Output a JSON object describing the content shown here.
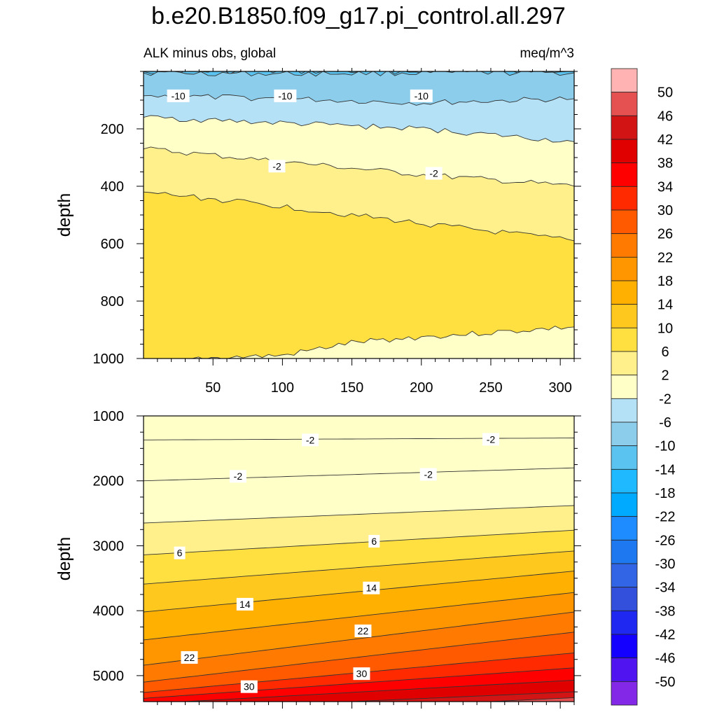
{
  "page": {
    "title": "b.e20.B1850.f09_g17.pi_control.all.297",
    "subtitle_left": "ALK minus obs, global",
    "subtitle_right": "meq/m^3"
  },
  "colorbar": {
    "levels": [
      50,
      46,
      42,
      38,
      34,
      30,
      26,
      22,
      18,
      14,
      10,
      6,
      2,
      -2,
      -6,
      -10,
      -14,
      -18,
      -22,
      -26,
      -30,
      -34,
      -38,
      -42,
      -46,
      -50
    ],
    "colors": [
      "#ffb3b3",
      "#e55050",
      "#d21414",
      "#e00000",
      "#ff0000",
      "#ff2a00",
      "#ff5a00",
      "#ff7a00",
      "#ff9600",
      "#ffb000",
      "#ffc81e",
      "#ffe040",
      "#fff08c",
      "#ffffc8",
      "#b4e1f5",
      "#8ccdeb",
      "#5ac3f0",
      "#1eb9ff",
      "#00aaff",
      "#1e8cff",
      "#1e78f0",
      "#3264e6",
      "#3250dc",
      "#1e28f0",
      "#1400ff",
      "#5014f0",
      "#8228e6"
    ]
  },
  "chart_data": [
    {
      "type": "contour",
      "panel": "upper",
      "xlabel": "",
      "ylabel": "depth",
      "xlim": [
        0,
        310
      ],
      "ylim": [
        1000,
        0
      ],
      "xticks": [
        50,
        100,
        150,
        200,
        250,
        300
      ],
      "yticks": [
        200,
        400,
        600,
        800,
        1000
      ],
      "contour_labels": [
        {
          "text": "-10",
          "x": 25,
          "y": 85
        },
        {
          "text": "-10",
          "x": 102,
          "y": 85
        },
        {
          "text": "-10",
          "x": 200,
          "y": 85
        },
        {
          "text": "-2",
          "x": 96,
          "y": 330
        },
        {
          "text": "-2",
          "x": 209,
          "y": 355
        }
      ],
      "contours": [
        {
          "level": -14,
          "x": [
            0,
            310
          ],
          "y": [
            0,
            0
          ]
        },
        {
          "level": -10,
          "x": [
            0,
            100,
            200,
            310
          ],
          "y": [
            5,
            8,
            5,
            5
          ]
        },
        {
          "level": -6,
          "x": [
            0,
            100,
            200,
            310
          ],
          "y": [
            85,
            95,
            110,
            95
          ]
        },
        {
          "level": -2,
          "x": [
            0,
            100,
            200,
            310
          ],
          "y": [
            160,
            180,
            200,
            245
          ]
        },
        {
          "level": 2,
          "x": [
            0,
            100,
            200,
            310
          ],
          "y": [
            270,
            315,
            360,
            400
          ]
        },
        {
          "level": 6,
          "x": [
            0,
            100,
            200,
            310
          ],
          "y": [
            420,
            470,
            530,
            590
          ]
        },
        {
          "level": 2,
          "x": [
            35,
            100,
            150,
            200,
            250,
            310
          ],
          "y": [
            1000,
            990,
            945,
            925,
            910,
            890
          ]
        }
      ]
    },
    {
      "type": "contour",
      "panel": "lower",
      "xlabel": "",
      "ylabel": "depth",
      "xlim": [
        0,
        310
      ],
      "ylim": [
        5400,
        1000
      ],
      "xticks": [
        50,
        100,
        150,
        200,
        250,
        300
      ],
      "yticks": [
        1000,
        2000,
        3000,
        4000,
        5000
      ],
      "contour_labels": [
        {
          "text": "-2",
          "x": 120,
          "y": 1370
        },
        {
          "text": "-2",
          "x": 250,
          "y": 1360
        },
        {
          "text": "-2",
          "x": 68,
          "y": 1930
        },
        {
          "text": "-2",
          "x": 205,
          "y": 1900
        },
        {
          "text": "6",
          "x": 26,
          "y": 3110
        },
        {
          "text": "6",
          "x": 166,
          "y": 2930
        },
        {
          "text": "14",
          "x": 73,
          "y": 3900
        },
        {
          "text": "14",
          "x": 164,
          "y": 3650
        },
        {
          "text": "22",
          "x": 33,
          "y": 4720
        },
        {
          "text": "22",
          "x": 158,
          "y": 4310
        },
        {
          "text": "30",
          "x": 76,
          "y": 5170
        },
        {
          "text": "30",
          "x": 157,
          "y": 4970
        }
      ],
      "contours": [
        {
          "level": -2,
          "x": [
            0,
            310
          ],
          "y": [
            1370,
            1340
          ]
        },
        {
          "level": -2,
          "x": [
            0,
            310
          ],
          "y": [
            2000,
            1800
          ]
        },
        {
          "level": 2,
          "x": [
            0,
            310
          ],
          "y": [
            2650,
            2380
          ]
        },
        {
          "level": 6,
          "x": [
            0,
            310
          ],
          "y": [
            3140,
            2760
          ]
        },
        {
          "level": 10,
          "x": [
            0,
            310
          ],
          "y": [
            3590,
            3080
          ]
        },
        {
          "level": 14,
          "x": [
            0,
            310
          ],
          "y": [
            4020,
            3390
          ]
        },
        {
          "level": 18,
          "x": [
            0,
            310
          ],
          "y": [
            4450,
            3720
          ]
        },
        {
          "level": 22,
          "x": [
            0,
            310
          ],
          "y": [
            4840,
            4020
          ]
        },
        {
          "level": 26,
          "x": [
            0,
            310
          ],
          "y": [
            5100,
            4330
          ]
        },
        {
          "level": 30,
          "x": [
            0,
            310
          ],
          "y": [
            5260,
            4650
          ]
        },
        {
          "level": 34,
          "x": [
            0,
            310
          ],
          "y": [
            5350,
            4880
          ]
        },
        {
          "level": 38,
          "x": [
            30,
            310
          ],
          "y": [
            5400,
            5070
          ]
        },
        {
          "level": 42,
          "x": [
            150,
            310
          ],
          "y": [
            5400,
            5250
          ]
        },
        {
          "level": 46,
          "x": [
            250,
            310
          ],
          "y": [
            5400,
            5340
          ]
        }
      ]
    }
  ]
}
